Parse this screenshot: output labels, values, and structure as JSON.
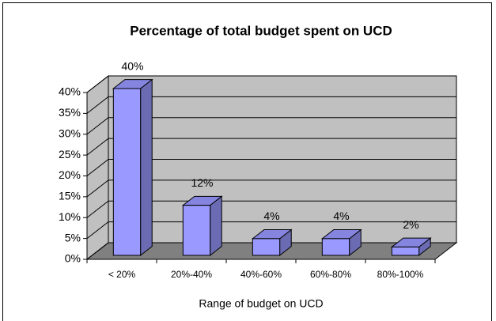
{
  "chart_data": {
    "type": "bar3d",
    "title": "Percentage of total budget spent on UCD",
    "x_label": "Range of budget on UCD",
    "categories": [
      "< 20%",
      "20%-40%",
      "40%-60%",
      "60%-80%",
      "80%-100%"
    ],
    "values": [
      40,
      12,
      4,
      4,
      2
    ],
    "value_labels": [
      "40%",
      "12%",
      "4%",
      "4%",
      "2%"
    ],
    "color": "#9999ff",
    "ylim": [
      0,
      40
    ],
    "yticks": [
      {
        "value": 0,
        "label": "0%"
      },
      {
        "value": 5,
        "label": "5%"
      },
      {
        "value": 10,
        "label": "10%"
      },
      {
        "value": 15,
        "label": "15%"
      },
      {
        "value": 20,
        "label": "20%"
      },
      {
        "value": 25,
        "label": "25%"
      },
      {
        "value": 30,
        "label": "30%"
      },
      {
        "value": 35,
        "label": "35%"
      },
      {
        "value": 40,
        "label": "40%"
      }
    ],
    "grid": true
  }
}
